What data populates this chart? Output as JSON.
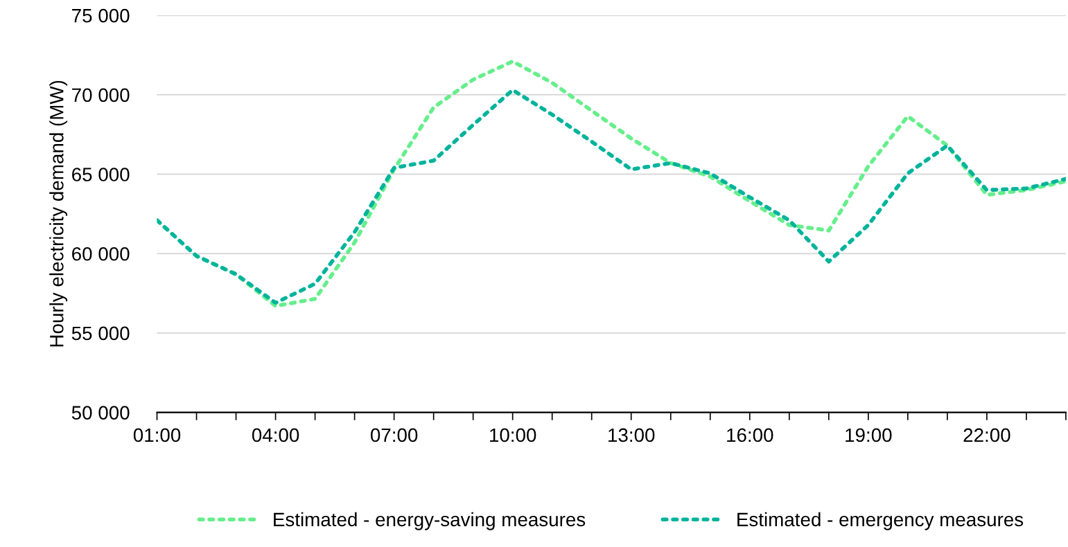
{
  "chart_data": {
    "type": "line",
    "ylabel": "Hourly electricity demand (MW)",
    "categories": [
      "01:00",
      null,
      null,
      "04:00",
      null,
      null,
      "07:00",
      null,
      null,
      "10:00",
      null,
      null,
      "13:00",
      null,
      null,
      "16:00",
      null,
      null,
      "19:00",
      null,
      null,
      "22:00",
      null,
      null
    ],
    "ylim": [
      50000,
      75000
    ],
    "yticks": [
      {
        "value": 50000,
        "label": "50 000"
      },
      {
        "value": 55000,
        "label": "55 000"
      },
      {
        "value": 60000,
        "label": "60 000"
      },
      {
        "value": 65000,
        "label": "65 000"
      },
      {
        "value": 70000,
        "label": "70 000"
      },
      {
        "value": 75000,
        "label": "75 000"
      }
    ],
    "grid": "y",
    "legend": "bottom",
    "line_style": "dotted",
    "marker": "none",
    "series": [
      {
        "name": "Estimated - energy-saving measures",
        "color": "#66ee8c",
        "values": [
          62100,
          59850,
          58700,
          56700,
          57150,
          60700,
          65300,
          69200,
          70950,
          72100,
          70750,
          69000,
          67250,
          65700,
          64850,
          63300,
          61800,
          61450,
          65500,
          68650,
          66800,
          63700,
          64000,
          64550
        ]
      },
      {
        "name": "Estimated - emergency measures",
        "color": "#00b39b",
        "values": [
          62100,
          59850,
          58700,
          56900,
          58100,
          61350,
          65400,
          65850,
          68100,
          70300,
          68750,
          67050,
          65300,
          65700,
          65050,
          63550,
          62100,
          59500,
          61800,
          65050,
          66800,
          64000,
          64100,
          64700
        ]
      }
    ]
  }
}
